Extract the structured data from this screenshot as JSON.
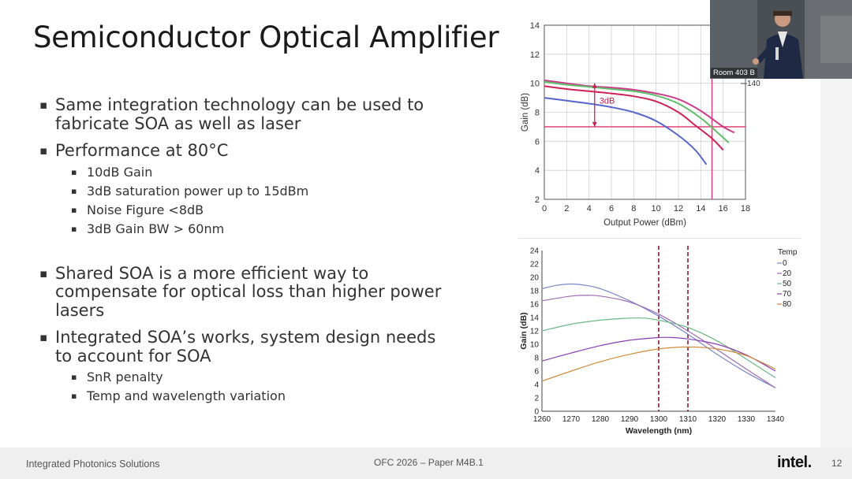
{
  "slide": {
    "title": "Semiconductor Optical Amplifier",
    "bullets": [
      {
        "text": "Same integration technology can be used to fabricate SOA as well as laser",
        "sub": []
      },
      {
        "text": "Performance at 80°C",
        "sub": [
          "10dB Gain",
          "3dB saturation power up to 15dBm",
          "Noise Figure <8dB",
          "3dB Gain BW > 60nm"
        ]
      },
      {
        "text": "Shared SOA is a more efficient way to compensate for optical loss than higher power lasers",
        "sub": []
      },
      {
        "text": "Integrated SOA’s works, system design needs to account for SOA",
        "sub": [
          "SnR penalty",
          "Temp and wavelength variation"
        ]
      }
    ]
  },
  "footer": {
    "left": "Integrated Photonics Solutions",
    "center": "OFC 2026 – Paper M4B.1",
    "logo": "intel.",
    "page": "12"
  },
  "video": {
    "room_label": "Room 403 B"
  },
  "chart_data": [
    {
      "type": "line",
      "title": "",
      "xlabel": "Output Power (dBm)",
      "ylabel": "Gain (dB)",
      "xlim": [
        0,
        18
      ],
      "ylim": [
        2,
        14
      ],
      "xticks": [
        0,
        2,
        4,
        6,
        8,
        10,
        12,
        14,
        16,
        18
      ],
      "yticks": [
        2,
        4,
        6,
        8,
        10,
        12,
        14
      ],
      "grid": true,
      "legend_entries": [
        "140"
      ],
      "series": [
        {
          "name": "",
          "color": "#cc3b8a",
          "x": [
            0,
            2,
            4,
            6,
            8,
            10,
            12,
            14,
            16,
            17
          ],
          "y": [
            10.2,
            10.0,
            9.8,
            9.7,
            9.55,
            9.3,
            8.9,
            8.1,
            7.0,
            6.6
          ]
        },
        {
          "name": "",
          "color": "#5fbf6a",
          "x": [
            0,
            2,
            4,
            6,
            8,
            10,
            12,
            14,
            15.5,
            16.5
          ],
          "y": [
            10.1,
            9.9,
            9.75,
            9.6,
            9.45,
            9.15,
            8.6,
            7.6,
            6.6,
            5.9
          ]
        },
        {
          "name": "",
          "color": "#cc2255",
          "x": [
            0,
            2,
            4,
            6,
            8,
            10,
            12,
            13.5,
            15,
            16
          ],
          "y": [
            9.8,
            9.6,
            9.45,
            9.3,
            9.1,
            8.75,
            8.0,
            7.1,
            6.2,
            5.4
          ]
        },
        {
          "name": "",
          "color": "#5566cc",
          "x": [
            0,
            2,
            4,
            6,
            8,
            10,
            12,
            13.5,
            14.5
          ],
          "y": [
            9.0,
            8.8,
            8.6,
            8.35,
            8.0,
            7.4,
            6.4,
            5.4,
            4.4
          ]
        }
      ],
      "annotations": [
        {
          "text": "3dB",
          "color": "#cc2255"
        },
        {
          "type": "hline",
          "y": 7,
          "color": "#e0336a"
        },
        {
          "type": "vline",
          "x": 15,
          "color": "#e0336a"
        },
        {
          "type": "arrow",
          "x": 4.5,
          "y_from": 10.0,
          "y_to": 7.0,
          "color": "#cc2255"
        }
      ]
    },
    {
      "type": "line",
      "title": "",
      "xlabel": "Wavelength (nm)",
      "ylabel": "Gain (dB)",
      "xlim": [
        1260,
        1340
      ],
      "ylim": [
        0,
        24
      ],
      "xticks": [
        1260,
        1270,
        1280,
        1290,
        1300,
        1310,
        1320,
        1330,
        1340
      ],
      "yticks": [
        0,
        2,
        4,
        6,
        8,
        10,
        12,
        14,
        16,
        18,
        20,
        22,
        24
      ],
      "grid": false,
      "legend_title": "Temp",
      "legend_placement": "top-right",
      "vlines": [
        1300,
        1310
      ],
      "series": [
        {
          "name": "0",
          "color": "#7b86c9",
          "x": [
            1260,
            1265,
            1270,
            1275,
            1280,
            1290,
            1300,
            1310,
            1320,
            1330,
            1340
          ],
          "y": [
            18.3,
            18.8,
            19.0,
            18.8,
            18.3,
            16.5,
            14.2,
            11.5,
            8.5,
            5.8,
            3.5
          ]
        },
        {
          "name": "20",
          "color": "#a06bb5",
          "x": [
            1260,
            1270,
            1275,
            1280,
            1290,
            1300,
            1310,
            1320,
            1330,
            1340
          ],
          "y": [
            16.5,
            17.2,
            17.3,
            17.2,
            16.3,
            14.5,
            12.0,
            9.2,
            6.3,
            3.5
          ]
        },
        {
          "name": "50",
          "color": "#6ab883",
          "x": [
            1260,
            1270,
            1280,
            1290,
            1295,
            1300,
            1310,
            1320,
            1330,
            1340
          ],
          "y": [
            12.0,
            13.0,
            13.6,
            13.9,
            13.9,
            13.6,
            12.5,
            10.5,
            7.8,
            5.0
          ]
        },
        {
          "name": "70",
          "color": "#8a3fb0",
          "x": [
            1260,
            1270,
            1280,
            1290,
            1300,
            1305,
            1310,
            1320,
            1330,
            1340
          ],
          "y": [
            7.5,
            8.7,
            9.8,
            10.6,
            11.0,
            11.0,
            10.8,
            10.0,
            8.4,
            6.0
          ]
        },
        {
          "name": "80",
          "color": "#d08c3a",
          "x": [
            1260,
            1270,
            1280,
            1290,
            1300,
            1310,
            1320,
            1330,
            1340
          ],
          "y": [
            4.5,
            6.0,
            7.4,
            8.5,
            9.3,
            9.6,
            9.3,
            8.3,
            6.3
          ]
        }
      ]
    }
  ]
}
